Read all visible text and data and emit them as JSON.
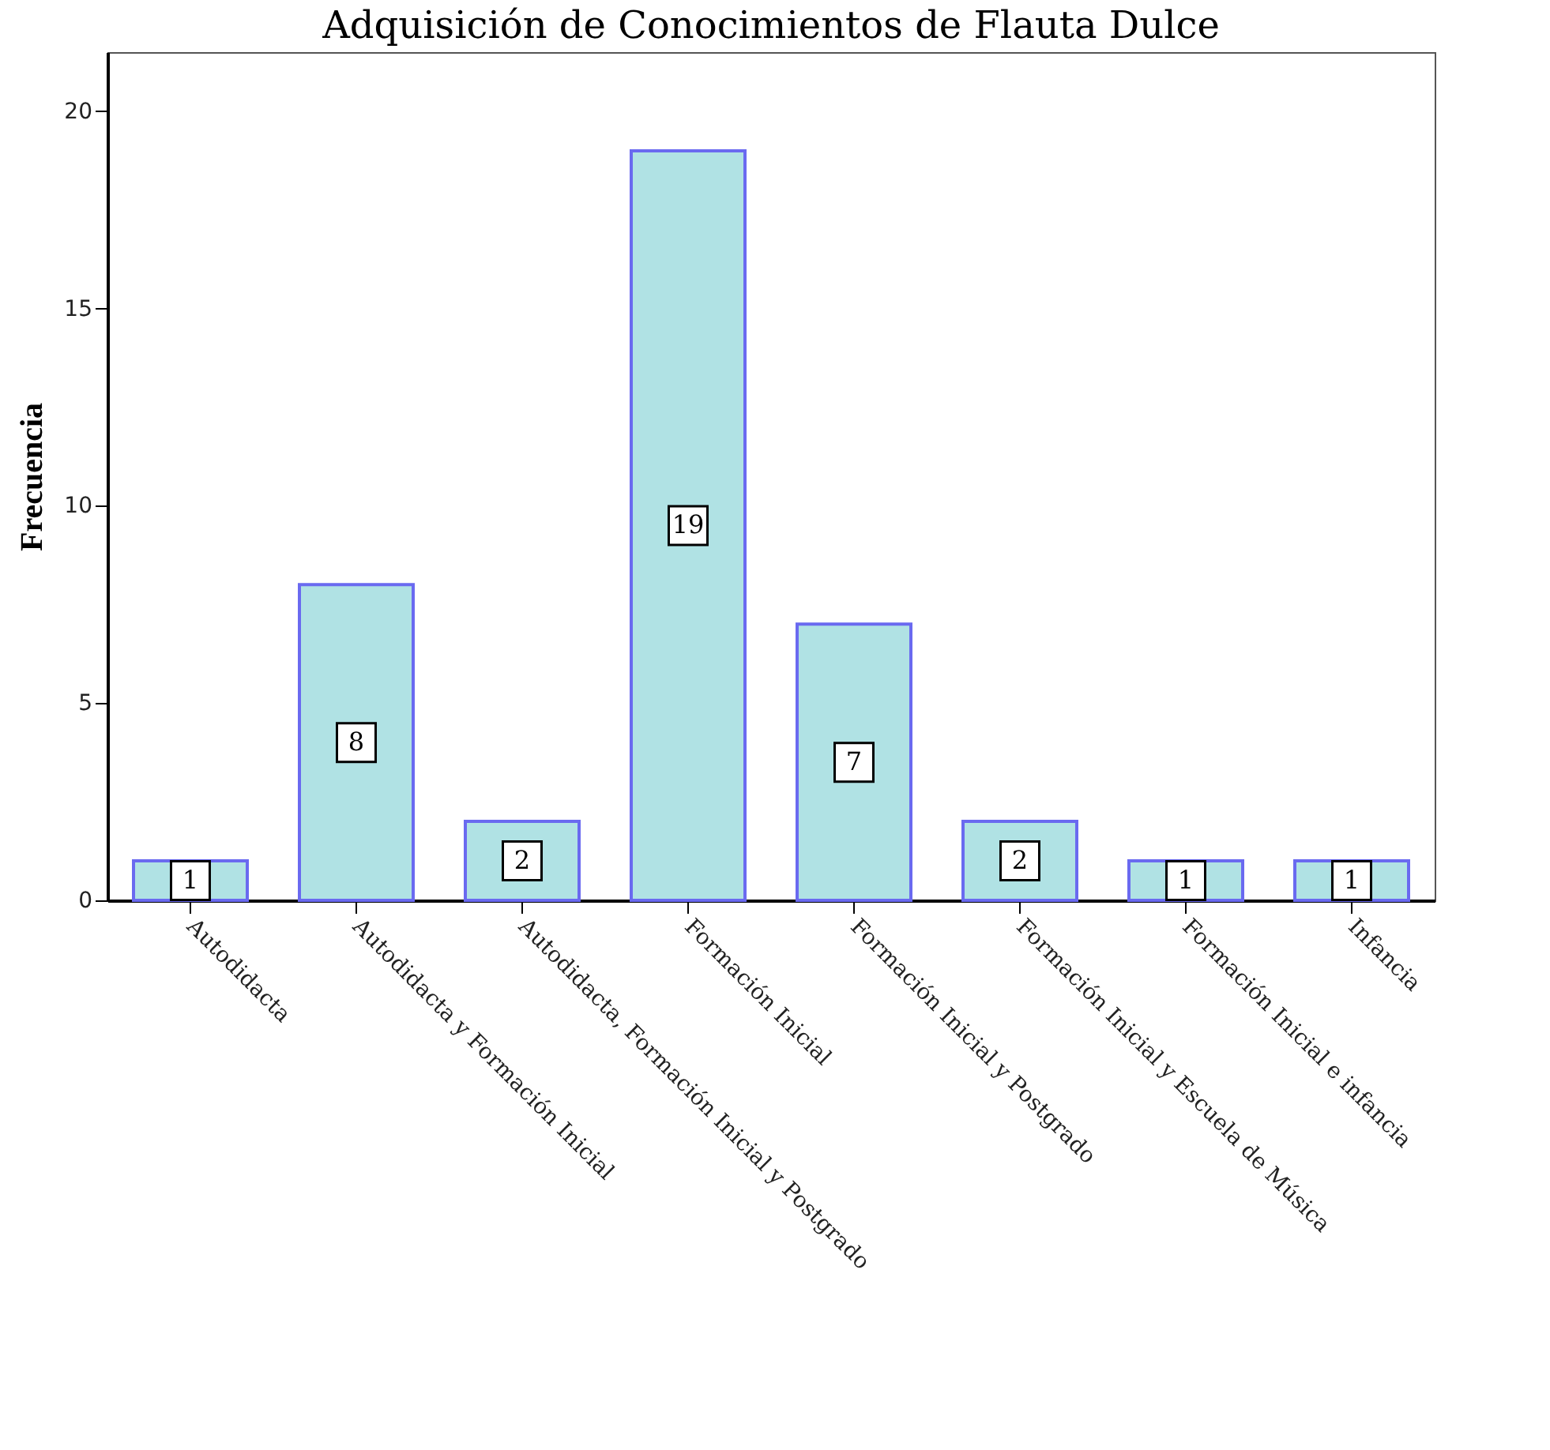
{
  "chart_data": {
    "type": "bar",
    "title": "Adquisición de Conocimientos de Flauta Dulce",
    "ylabel": "Frecuencia",
    "categories": [
      "Autodidacta",
      "Autodidacta y Formación Inicial",
      "Autodidacta, Formación Inicial y Postgrado",
      "Formación Inicial",
      "Formación Inicial y Postgrado",
      "Formación Inicial y Escuela de Música",
      "Formación Inicial e infancia",
      "Infancia"
    ],
    "values": [
      1,
      8,
      2,
      19,
      7,
      2,
      1,
      1
    ],
    "color": "#b0e2e4",
    "ylim": [
      0,
      21.5
    ],
    "yticks": [
      0,
      5,
      10,
      15,
      20
    ],
    "grid": false,
    "data_labels": true
  }
}
